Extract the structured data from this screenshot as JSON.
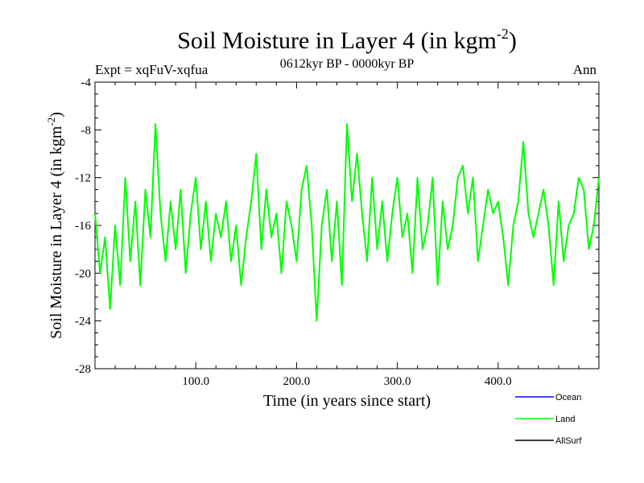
{
  "chart_data": {
    "type": "line",
    "title": "Soil Moisture in Layer 4 (in kgm",
    "title_sup": "-2",
    "title_close": ")",
    "subtitle": "0612kyr BP - 0000kyr BP",
    "left_label": "Expt = xqFuV-xqfua",
    "right_label": "Ann",
    "xlabel": "Time (in years since start)",
    "ylabel": "Soil Moisture in Layer 4 (in kgm",
    "ylabel_sup": "-2",
    "ylabel_close": ")",
    "xlim": [
      0,
      500
    ],
    "ylim": [
      -28,
      -4
    ],
    "xticks": [
      100,
      200,
      300,
      400
    ],
    "xtick_labels": [
      "100.0",
      "200.0",
      "300.0",
      "400.0"
    ],
    "yticks": [
      -4,
      -8,
      -12,
      -16,
      -20,
      -24,
      -28
    ],
    "ytick_labels": [
      "-4",
      "-8",
      "-12",
      "-16",
      "-20",
      "-24",
      "-28"
    ],
    "grid": false,
    "legend_position": "bottom-right",
    "series": [
      {
        "name": "Ocean",
        "color": "#0000ff",
        "x": [],
        "values": []
      },
      {
        "name": "AllSurf",
        "color": "#000000",
        "x": [],
        "values": []
      },
      {
        "name": "Land",
        "color": "#00ff00",
        "x": [
          0,
          5,
          10,
          15,
          20,
          25,
          30,
          35,
          40,
          45,
          50,
          55,
          60,
          65,
          70,
          75,
          80,
          85,
          90,
          95,
          100,
          105,
          110,
          115,
          120,
          125,
          130,
          135,
          140,
          145,
          150,
          155,
          160,
          165,
          170,
          175,
          180,
          185,
          190,
          195,
          200,
          205,
          210,
          215,
          220,
          225,
          230,
          235,
          240,
          245,
          250,
          255,
          260,
          265,
          270,
          275,
          280,
          285,
          290,
          295,
          300,
          305,
          310,
          315,
          320,
          325,
          330,
          335,
          340,
          345,
          350,
          355,
          360,
          365,
          370,
          375,
          380,
          385,
          390,
          395,
          400,
          405,
          410,
          415,
          420,
          425,
          430,
          435,
          440,
          445,
          450,
          455,
          460,
          465,
          470,
          475,
          480,
          485,
          490,
          495,
          500
        ],
        "values": [
          -15,
          -20,
          -17,
          -23,
          -16,
          -21,
          -12,
          -19,
          -14,
          -21,
          -13,
          -17,
          -7.5,
          -15,
          -19,
          -14,
          -18,
          -13,
          -20,
          -15,
          -12,
          -18,
          -14,
          -19,
          -15,
          -17,
          -14,
          -19,
          -16,
          -21,
          -17,
          -14,
          -10,
          -18,
          -13,
          -17,
          -15,
          -20,
          -14,
          -16,
          -19,
          -13,
          -11,
          -16,
          -24,
          -16,
          -13,
          -19,
          -14,
          -21,
          -7.5,
          -14,
          -10,
          -15,
          -19,
          -12,
          -18,
          -14,
          -19,
          -15,
          -12,
          -17,
          -15,
          -20,
          -12,
          -18,
          -16,
          -12,
          -21,
          -14,
          -18,
          -16,
          -12,
          -11,
          -15,
          -12,
          -19,
          -16,
          -13,
          -15,
          -14,
          -17,
          -21,
          -16,
          -14,
          -9,
          -15,
          -17,
          -15,
          -13,
          -16,
          -21,
          -14,
          -19,
          -16,
          -15,
          -12,
          -13,
          -18,
          -16,
          -12
        ]
      }
    ],
    "legend": [
      {
        "name": "Ocean",
        "color": "#0000ff"
      },
      {
        "name": "Land",
        "color": "#00ff00"
      },
      {
        "name": "AllSurf",
        "color": "#000000"
      }
    ]
  }
}
